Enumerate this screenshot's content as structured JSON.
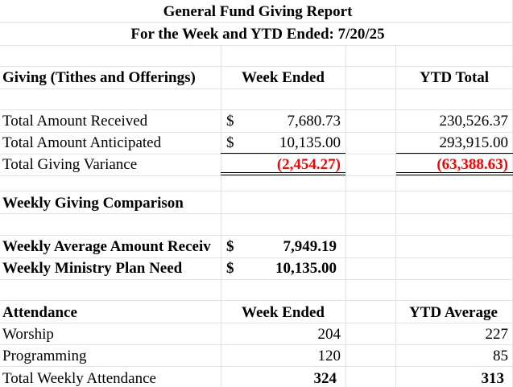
{
  "report": {
    "title": "General Fund Giving Report",
    "subtitle": "For the Week and YTD Ended:  7/20/25"
  },
  "giving": {
    "header": "Giving (Tithes and Offerings)",
    "col_week": "Week Ended",
    "col_ytd": "YTD Total",
    "rows": [
      {
        "label": "Total Amount Received",
        "currency": "$",
        "week": "7,680.73",
        "ytd": "230,526.37"
      },
      {
        "label": "Total Amount Anticipated",
        "currency": "$",
        "week": "10,135.00",
        "ytd": "293,915.00"
      },
      {
        "label": "Total Giving Variance",
        "currency": "",
        "week": "(2,454.27)",
        "ytd": "(63,388.63)"
      }
    ]
  },
  "comparison": {
    "header": "Weekly Giving Comparison",
    "rows": [
      {
        "label": "Weekly Average Amount Receiv",
        "currency": "$",
        "value": "7,949.19"
      },
      {
        "label": "Weekly Ministry Plan Need",
        "currency": "$",
        "value": "10,135.00"
      }
    ]
  },
  "attendance": {
    "header": "Attendance",
    "col_week": "Week Ended",
    "col_ytd": "YTD Average",
    "rows": [
      {
        "label": "Worship",
        "week": "204",
        "ytd": "227"
      },
      {
        "label": "Programming",
        "week": "120",
        "ytd": "85"
      },
      {
        "label": "Total Weekly Attendance",
        "week": "324",
        "ytd": "313"
      }
    ]
  },
  "colors": {
    "negative": "#ff0000",
    "gridline": "#e3e3e3"
  }
}
